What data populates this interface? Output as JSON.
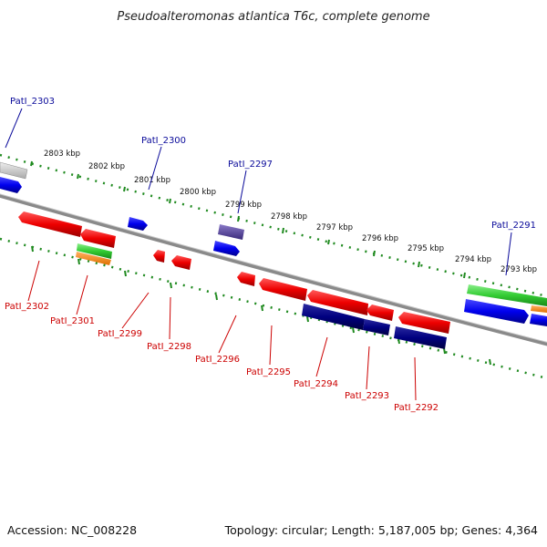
{
  "title": "Pseudoalteromonas atlantica T6c, complete genome",
  "footer": {
    "accession": "Accession: NC_008228",
    "summary": "Topology: circular; Length: 5,187,005 bp; Genes: 4,364"
  },
  "colors": {
    "backbone": "#8a8a8a",
    "ticks": "#1f8a1f",
    "forward_gene": "#0000ee",
    "reverse_gene": "#ee0000",
    "dark_gene": "#000080",
    "green_gene": "#33cc33",
    "orange_gene": "#ff8800",
    "grey_gene": "#c8c8c8",
    "purple_gene": "#5a4a9a",
    "label_blue": "#0a0a9a",
    "label_red": "#cc0000"
  },
  "scale_labels": [
    "2803 kbp",
    "2802 kbp",
    "2801 kbp",
    "2800 kbp",
    "2799 kbp",
    "2798 kbp",
    "2797 kbp",
    "2796 kbp",
    "2795 kbp",
    "2794 kbp",
    "2793 kbp"
  ],
  "top_labels": [
    "PatI_2303",
    "PatI_2300",
    "PatI_2297",
    "PatI_2291"
  ],
  "bottom_labels": [
    "PatI_2302",
    "PatI_2301",
    "PatI_2299",
    "PatI_2298",
    "PatI_2296",
    "PatI_2295",
    "PatI_2294",
    "PatI_2293",
    "PatI_2292"
  ]
}
